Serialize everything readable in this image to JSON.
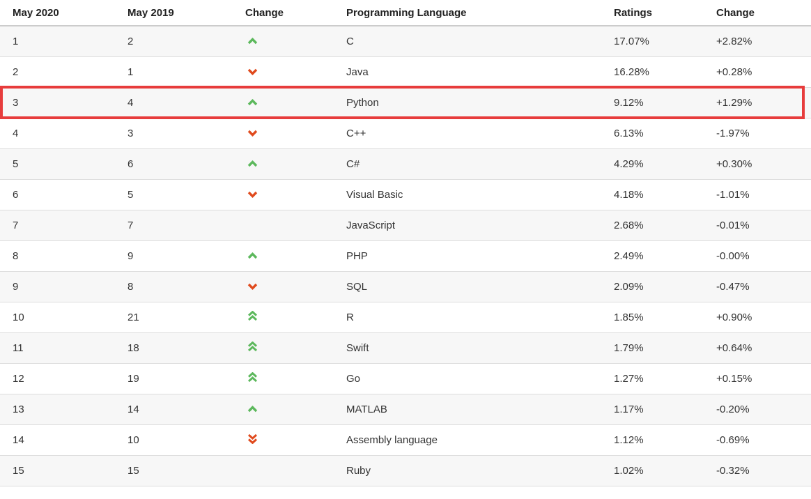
{
  "table": {
    "headers": {
      "rank_now": "May 2020",
      "rank_prev": "May 2019",
      "change": "Change",
      "language": "Programming Language",
      "ratings": "Ratings",
      "ratings_change": "Change"
    },
    "rows": [
      {
        "rank_now": "1",
        "rank_prev": "2",
        "trend": "up",
        "language": "C",
        "ratings": "17.07%",
        "change": "+2.82%",
        "highlighted": false
      },
      {
        "rank_now": "2",
        "rank_prev": "1",
        "trend": "down",
        "language": "Java",
        "ratings": "16.28%",
        "change": "+0.28%",
        "highlighted": false
      },
      {
        "rank_now": "3",
        "rank_prev": "4",
        "trend": "up",
        "language": "Python",
        "ratings": "9.12%",
        "change": "+1.29%",
        "highlighted": true
      },
      {
        "rank_now": "4",
        "rank_prev": "3",
        "trend": "down",
        "language": "C++",
        "ratings": "6.13%",
        "change": "-1.97%",
        "highlighted": false
      },
      {
        "rank_now": "5",
        "rank_prev": "6",
        "trend": "up",
        "language": "C#",
        "ratings": "4.29%",
        "change": "+0.30%",
        "highlighted": false
      },
      {
        "rank_now": "6",
        "rank_prev": "5",
        "trend": "down",
        "language": "Visual Basic",
        "ratings": "4.18%",
        "change": "-1.01%",
        "highlighted": false
      },
      {
        "rank_now": "7",
        "rank_prev": "7",
        "trend": "",
        "language": "JavaScript",
        "ratings": "2.68%",
        "change": "-0.01%",
        "highlighted": false
      },
      {
        "rank_now": "8",
        "rank_prev": "9",
        "trend": "up",
        "language": "PHP",
        "ratings": "2.49%",
        "change": "-0.00%",
        "highlighted": false
      },
      {
        "rank_now": "9",
        "rank_prev": "8",
        "trend": "down",
        "language": "SQL",
        "ratings": "2.09%",
        "change": "-0.47%",
        "highlighted": false
      },
      {
        "rank_now": "10",
        "rank_prev": "21",
        "trend": "double-up",
        "language": "R",
        "ratings": "1.85%",
        "change": "+0.90%",
        "highlighted": false
      },
      {
        "rank_now": "11",
        "rank_prev": "18",
        "trend": "double-up",
        "language": "Swift",
        "ratings": "1.79%",
        "change": "+0.64%",
        "highlighted": false
      },
      {
        "rank_now": "12",
        "rank_prev": "19",
        "trend": "double-up",
        "language": "Go",
        "ratings": "1.27%",
        "change": "+0.15%",
        "highlighted": false
      },
      {
        "rank_now": "13",
        "rank_prev": "14",
        "trend": "up",
        "language": "MATLAB",
        "ratings": "1.17%",
        "change": "-0.20%",
        "highlighted": false
      },
      {
        "rank_now": "14",
        "rank_prev": "10",
        "trend": "double-down",
        "language": "Assembly language",
        "ratings": "1.12%",
        "change": "-0.69%",
        "highlighted": false
      },
      {
        "rank_now": "15",
        "rank_prev": "15",
        "trend": "",
        "language": "Ruby",
        "ratings": "1.02%",
        "change": "-0.32%",
        "highlighted": false
      }
    ]
  },
  "colors": {
    "trend_up": "#5cb85c",
    "trend_down": "#e04a1d",
    "highlight_border": "#e73c3c",
    "row_stripe": "#f7f7f7",
    "row_border": "#dddddd",
    "header_border": "#cccccc",
    "header_text": "#222222",
    "body_text": "#333333"
  },
  "chart_data": {
    "type": "table",
    "columns": [
      "May 2020",
      "May 2019",
      "Change",
      "Programming Language",
      "Ratings",
      "Change"
    ],
    "rows": [
      [
        1,
        2,
        "up",
        "C",
        "17.07%",
        "+2.82%"
      ],
      [
        2,
        1,
        "down",
        "Java",
        "16.28%",
        "+0.28%"
      ],
      [
        3,
        4,
        "up",
        "Python",
        "9.12%",
        "+1.29%"
      ],
      [
        4,
        3,
        "down",
        "C++",
        "6.13%",
        "-1.97%"
      ],
      [
        5,
        6,
        "up",
        "C#",
        "4.29%",
        "+0.30%"
      ],
      [
        6,
        5,
        "down",
        "Visual Basic",
        "4.18%",
        "-1.01%"
      ],
      [
        7,
        7,
        "",
        "JavaScript",
        "2.68%",
        "-0.01%"
      ],
      [
        8,
        9,
        "up",
        "PHP",
        "2.49%",
        "-0.00%"
      ],
      [
        9,
        8,
        "down",
        "SQL",
        "2.09%",
        "-0.47%"
      ],
      [
        10,
        21,
        "double-up",
        "R",
        "1.85%",
        "+0.90%"
      ],
      [
        11,
        18,
        "double-up",
        "Swift",
        "1.79%",
        "+0.64%"
      ],
      [
        12,
        19,
        "double-up",
        "Go",
        "1.27%",
        "+0.15%"
      ],
      [
        13,
        14,
        "up",
        "MATLAB",
        "1.17%",
        "-0.20%"
      ],
      [
        14,
        10,
        "double-down",
        "Assembly language",
        "1.12%",
        "-0.69%"
      ],
      [
        15,
        15,
        "",
        "Ruby",
        "1.02%",
        "-0.32%"
      ]
    ],
    "highlighted_row": "Python",
    "notes": "striped table, odd rows shaded; green chevrons = rank up, red-orange chevrons = rank down, double chevrons = moved more than one place"
  }
}
